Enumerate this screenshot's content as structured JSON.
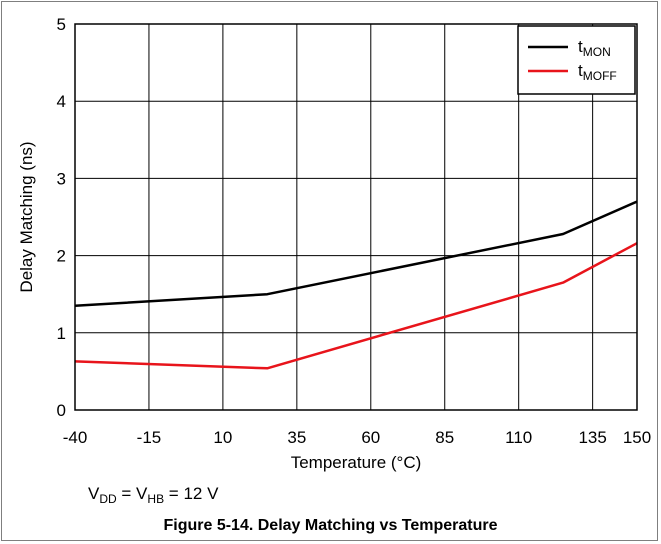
{
  "chart_data": {
    "type": "line",
    "title": "",
    "xlabel": "Temperature (°C)",
    "ylabel": "Delay Matching (ns)",
    "xlim": [
      -40,
      150
    ],
    "ylim": [
      0,
      5
    ],
    "x_ticks": [
      -40,
      -15,
      10,
      35,
      60,
      85,
      110,
      135,
      150
    ],
    "x_tick_labels": [
      "-40",
      "-15",
      "10",
      "35",
      "60",
      "85",
      "110",
      "135",
      "150"
    ],
    "y_ticks": [
      0,
      1,
      2,
      3,
      4,
      5
    ],
    "y_tick_labels": [
      "0",
      "1",
      "2",
      "3",
      "4",
      "5"
    ],
    "grid": true,
    "legend_position": "top-right",
    "series": [
      {
        "name": "tMON",
        "label_main": "t",
        "label_sub": "MON",
        "color": "#000000",
        "x": [
          -40,
          25,
          125,
          150
        ],
        "y": [
          1.35,
          1.5,
          2.28,
          2.7
        ]
      },
      {
        "name": "tMOFF",
        "label_main": "t",
        "label_sub": "MOFF",
        "color": "#e8141b",
        "x": [
          -40,
          25,
          125,
          150
        ],
        "y": [
          0.63,
          0.54,
          1.65,
          2.16
        ]
      }
    ]
  },
  "condition": {
    "v1": "V",
    "v1_sub": "DD",
    "eq1": " = V",
    "v2_sub": "HB",
    "eq2": " = 12 V"
  },
  "caption": "Figure 5-14. Delay Matching vs Temperature"
}
